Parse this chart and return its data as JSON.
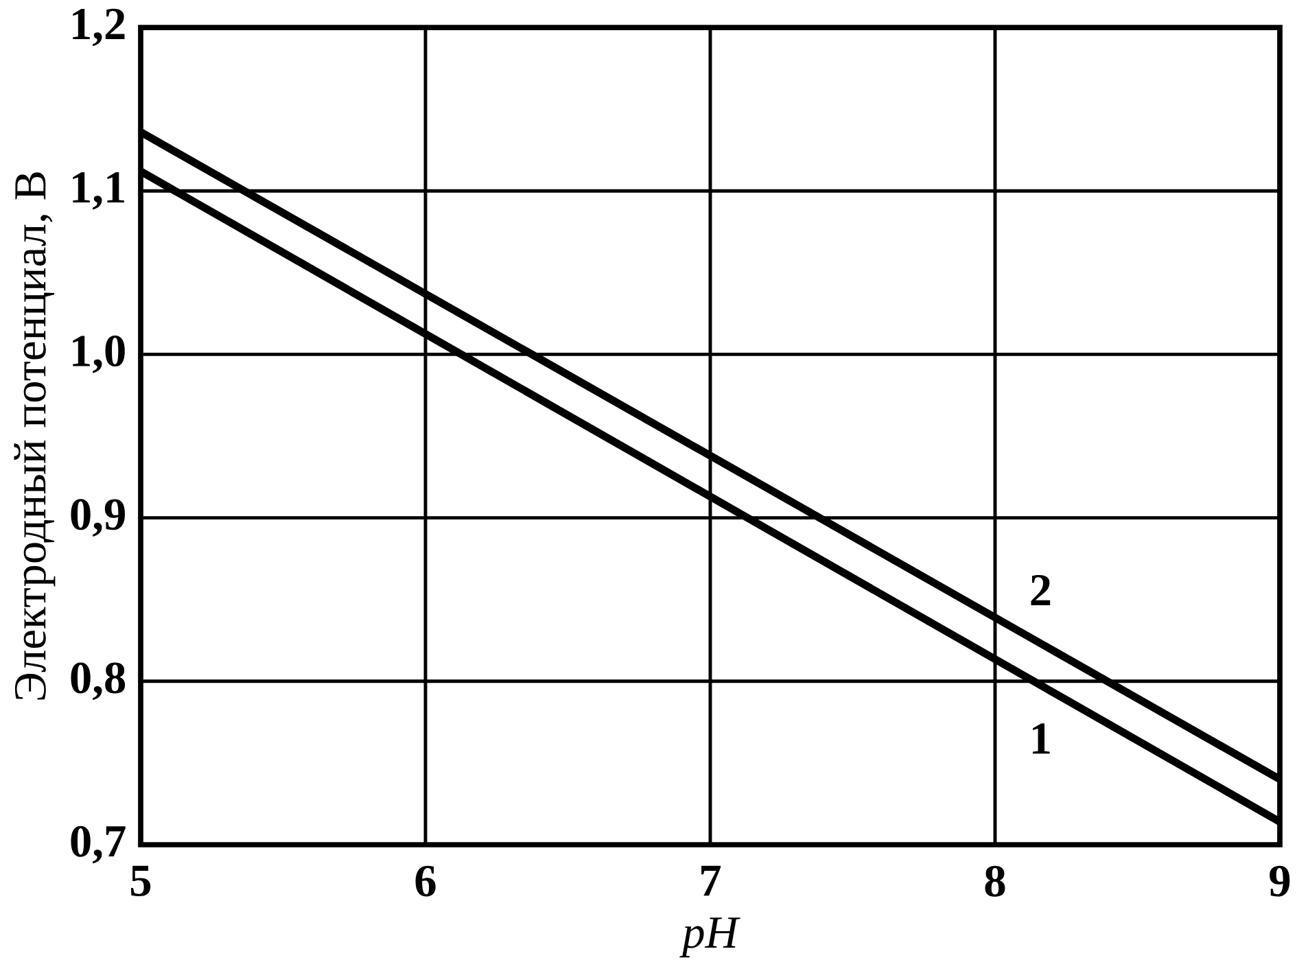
{
  "chart_data": {
    "type": "line",
    "xlabel": "pH",
    "ylabel": "Электродный потенциал, В",
    "xlim": [
      5,
      9
    ],
    "ylim": [
      0.7,
      1.2
    ],
    "xticks": [
      5,
      6,
      7,
      8,
      9
    ],
    "yticks": [
      {
        "value": 0.7,
        "label": "0,7"
      },
      {
        "value": 0.8,
        "label": "0,8"
      },
      {
        "value": 0.9,
        "label": "0,9"
      },
      {
        "value": 1.0,
        "label": "1,0"
      },
      {
        "value": 1.1,
        "label": "1,1"
      },
      {
        "value": 1.2,
        "label": "1,2"
      }
    ],
    "x": [
      5,
      9
    ],
    "series": [
      {
        "name": "1",
        "color": "#000000",
        "values": [
          1.112,
          0.714
        ]
      },
      {
        "name": "2",
        "color": "#000000",
        "values": [
          1.136,
          0.74
        ]
      }
    ],
    "grid": true,
    "marker": "none",
    "line_style": "solid"
  }
}
